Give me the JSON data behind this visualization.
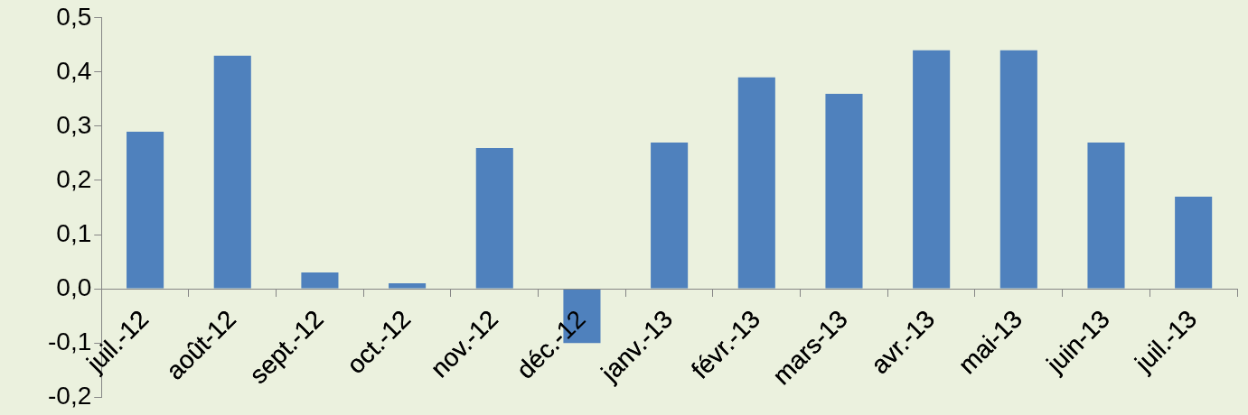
{
  "chart_data": {
    "type": "bar",
    "categories": [
      "juil.-12",
      "août-12",
      "sept.-12",
      "oct.-12",
      "nov.-12",
      "déc.-12",
      "janv.-13",
      "févr.-13",
      "mars-13",
      "avr.-13",
      "mai-13",
      "juin-13",
      "juil.-13"
    ],
    "values": [
      0.29,
      0.43,
      0.03,
      0.01,
      0.26,
      -0.1,
      0.27,
      0.39,
      0.36,
      0.44,
      0.44,
      0.27,
      0.17
    ],
    "color": "#4f81bd",
    "ylim": [
      -0.2,
      0.5
    ],
    "yticks": [
      {
        "value": -0.2,
        "label": "-0,2"
      },
      {
        "value": -0.1,
        "label": "-0,1"
      },
      {
        "value": 0,
        "label": "0,0"
      },
      {
        "value": 0.1,
        "label": "0,1"
      },
      {
        "value": 0.2,
        "label": "0,2"
      },
      {
        "value": 0.3,
        "label": "0,3"
      },
      {
        "value": 0.4,
        "label": "0,4"
      },
      {
        "value": 0.5,
        "label": "0,5"
      }
    ],
    "grid": false,
    "legend": false
  }
}
